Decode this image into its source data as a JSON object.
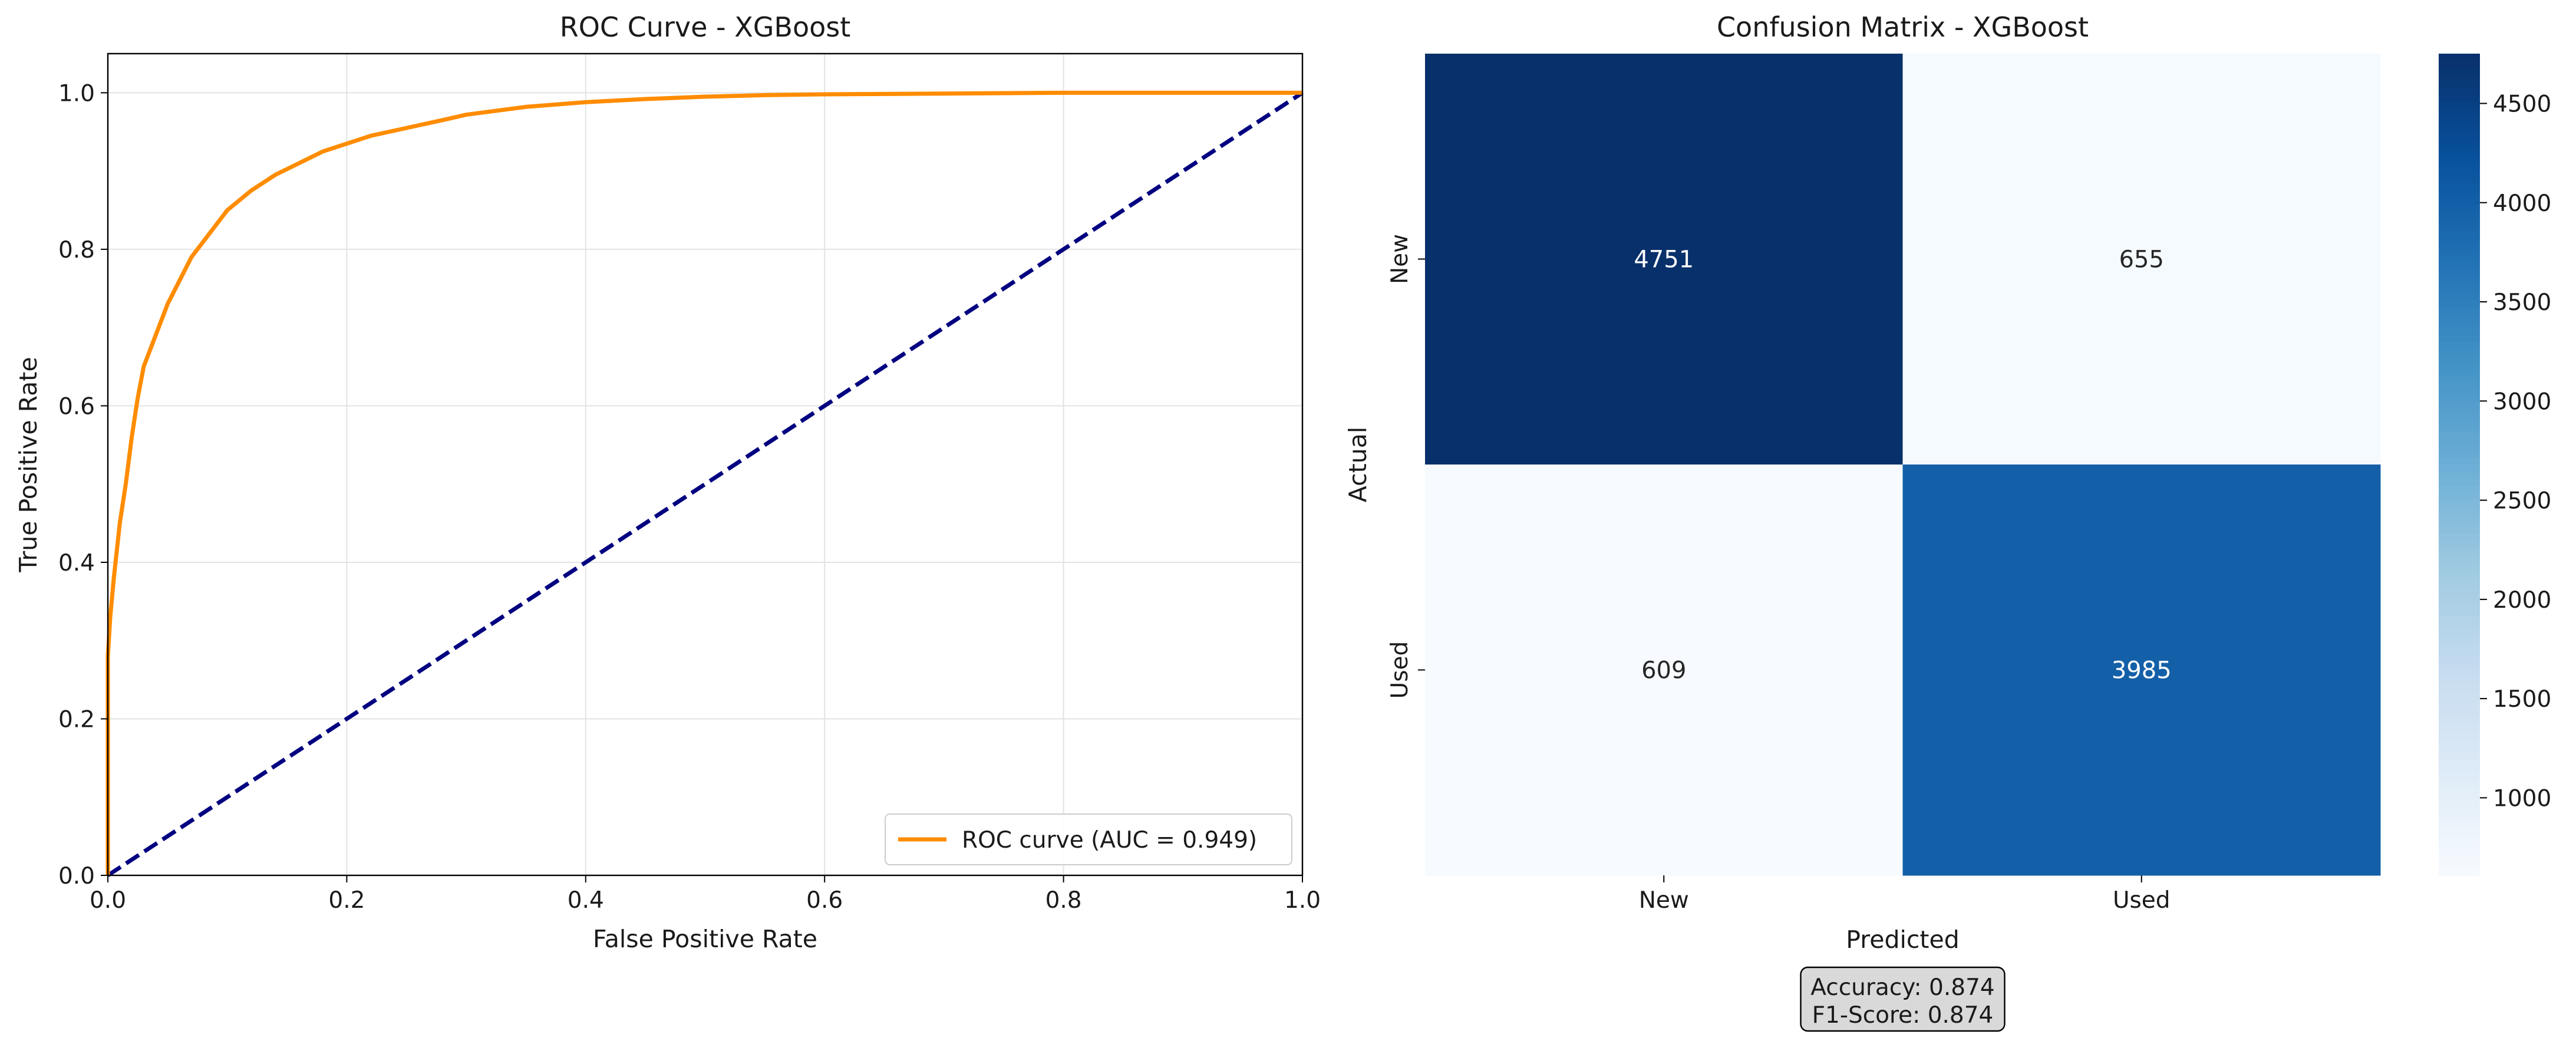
{
  "chart_data": [
    {
      "type": "line",
      "title": "ROC Curve - XGBoost",
      "xlabel": "False Positive Rate",
      "ylabel": "True Positive Rate",
      "xlim": [
        0.0,
        1.0
      ],
      "ylim": [
        0.0,
        1.05
      ],
      "xticks": [
        "0.0",
        "0.2",
        "0.4",
        "0.6",
        "0.8",
        "1.0"
      ],
      "yticks": [
        "0.0",
        "0.2",
        "0.4",
        "0.6",
        "0.8",
        "1.0"
      ],
      "grid": true,
      "legend_position": "lower-right",
      "series": [
        {
          "name": "ROC curve (AUC = 0.949)",
          "color": "#ff8c00",
          "style": "solid",
          "x": [
            0.0,
            0.0,
            0.002,
            0.005,
            0.01,
            0.015,
            0.02,
            0.025,
            0.03,
            0.04,
            0.05,
            0.06,
            0.07,
            0.08,
            0.09,
            0.1,
            0.12,
            0.14,
            0.16,
            0.18,
            0.2,
            0.22,
            0.25,
            0.28,
            0.3,
            0.35,
            0.4,
            0.45,
            0.5,
            0.55,
            0.6,
            0.7,
            0.8,
            0.9,
            1.0
          ],
          "y": [
            0.0,
            0.28,
            0.33,
            0.38,
            0.45,
            0.5,
            0.56,
            0.61,
            0.65,
            0.69,
            0.73,
            0.76,
            0.79,
            0.81,
            0.83,
            0.85,
            0.875,
            0.895,
            0.91,
            0.925,
            0.935,
            0.945,
            0.955,
            0.965,
            0.972,
            0.982,
            0.988,
            0.992,
            0.995,
            0.997,
            0.998,
            0.999,
            1.0,
            1.0,
            1.0
          ]
        },
        {
          "name": "",
          "color": "#000080",
          "style": "dashed",
          "x": [
            0.0,
            1.0
          ],
          "y": [
            0.0,
            1.0
          ]
        }
      ]
    },
    {
      "type": "heatmap",
      "title": "Confusion Matrix - XGBoost",
      "xlabel": "Predicted",
      "ylabel": "Actual",
      "x_categories": [
        "New",
        "Used"
      ],
      "y_categories": [
        "New",
        "Used"
      ],
      "values": [
        [
          4751,
          655
        ],
        [
          609,
          3985
        ]
      ],
      "colormap": "Blues",
      "value_range": [
        609,
        4751
      ],
      "colorbar_ticks": [
        "1000",
        "1500",
        "2000",
        "2500",
        "3000",
        "3500",
        "4000",
        "4500"
      ]
    }
  ],
  "metrics": {
    "accuracy": "Accuracy: 0.874",
    "f1": "F1-Score: 0.874"
  }
}
